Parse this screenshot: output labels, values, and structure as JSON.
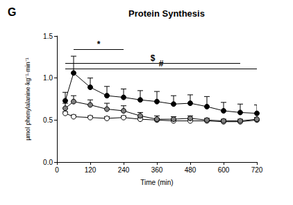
{
  "chart_data": {
    "type": "line",
    "panel_label": "G",
    "title": "Protein Synthesis",
    "x_label": "Time (min)",
    "y_label": "µmol phenylalanine·kg⁻¹·min⁻¹",
    "x": [
      30,
      60,
      120,
      180,
      240,
      300,
      360,
      420,
      480,
      540,
      600,
      660,
      720
    ],
    "series": [
      {
        "color": "#ffffff",
        "marker": "open circle",
        "values": [
          0.58,
          0.54,
          0.53,
          0.52,
          0.53,
          0.51,
          0.5,
          0.49,
          0.49,
          0.49,
          0.48,
          0.48,
          0.5
        ],
        "errors": [
          0.02,
          0.02,
          0.02,
          0.02,
          0.02,
          0.02,
          0.02,
          0.02,
          0.02,
          0.02,
          0.02,
          0.02,
          0.02
        ]
      },
      {
        "color": "#808080",
        "marker": "filled circle",
        "values": [
          0.64,
          0.72,
          0.68,
          0.63,
          0.61,
          0.55,
          0.51,
          0.51,
          0.52,
          0.5,
          0.49,
          0.49,
          0.51
        ],
        "errors": [
          0.06,
          0.07,
          0.06,
          0.07,
          0.06,
          0.04,
          0.04,
          0.03,
          0.03,
          0.02,
          0.02,
          0.02,
          0.02
        ]
      },
      {
        "color": "#000000",
        "marker": "filled circle",
        "values": [
          0.73,
          1.06,
          0.89,
          0.79,
          0.77,
          0.74,
          0.72,
          0.69,
          0.7,
          0.66,
          0.61,
          0.59,
          0.58
        ],
        "errors": [
          0.1,
          0.2,
          0.11,
          0.11,
          0.1,
          0.11,
          0.12,
          0.1,
          0.1,
          0.12,
          0.1,
          0.1,
          0.1
        ]
      }
    ],
    "xlim": [
      0,
      720
    ],
    "xticks": [
      0,
      120,
      240,
      360,
      480,
      600,
      720
    ],
    "ylim": [
      0,
      1.5
    ],
    "yticks": [
      {
        "value": 0,
        "label": "0.0"
      },
      {
        "value": 0.5,
        "label": "0.5"
      },
      {
        "value": 1,
        "label": "1.0"
      },
      {
        "value": 1.5,
        "label": "1.5"
      }
    ],
    "annotations": [
      {
        "text": "*",
        "x_start": 60,
        "x_end": 240,
        "y": 1.34
      },
      {
        "text": "$",
        "x_start": 30,
        "x_end": 660,
        "y": 1.18
      },
      {
        "text": "#",
        "x_start": 30,
        "x_end": 720,
        "y": 1.11
      }
    ],
    "grid": false
  }
}
